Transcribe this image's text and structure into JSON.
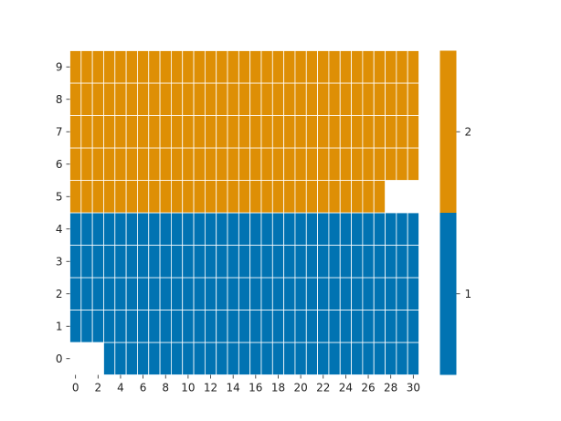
{
  "chart_data": {
    "type": "heatmap",
    "title": "",
    "xlabel": "",
    "ylabel": "",
    "x_ticks": [
      "0",
      "2",
      "4",
      "6",
      "8",
      "10",
      "12",
      "14",
      "16",
      "18",
      "20",
      "22",
      "24",
      "26",
      "28",
      "30"
    ],
    "y_ticks": [
      "0",
      "1",
      "2",
      "3",
      "4",
      "5",
      "6",
      "7",
      "8",
      "9"
    ],
    "n_cols": 31,
    "n_rows": 10,
    "rows": [
      {
        "y": 0,
        "value": 1,
        "x_from": 3,
        "x_to": 30
      },
      {
        "y": 1,
        "value": 1,
        "x_from": 0,
        "x_to": 30
      },
      {
        "y": 2,
        "value": 1,
        "x_from": 0,
        "x_to": 30
      },
      {
        "y": 3,
        "value": 1,
        "x_from": 0,
        "x_to": 30
      },
      {
        "y": 4,
        "value": 1,
        "x_from": 0,
        "x_to": 30
      },
      {
        "y": 5,
        "value": 2,
        "x_from": 0,
        "x_to": 27
      },
      {
        "y": 6,
        "value": 2,
        "x_from": 0,
        "x_to": 30
      },
      {
        "y": 7,
        "value": 2,
        "x_from": 0,
        "x_to": 30
      },
      {
        "y": 8,
        "value": 2,
        "x_from": 0,
        "x_to": 30
      },
      {
        "y": 9,
        "value": 2,
        "x_from": 0,
        "x_to": 30
      }
    ],
    "colorbar": {
      "categories": [
        {
          "label": "1",
          "value": 1,
          "color": "#0173b2"
        },
        {
          "label": "2",
          "value": 2,
          "color": "#de8f05"
        }
      ]
    },
    "grid": false,
    "cell_edge_color": "#ffffff"
  }
}
